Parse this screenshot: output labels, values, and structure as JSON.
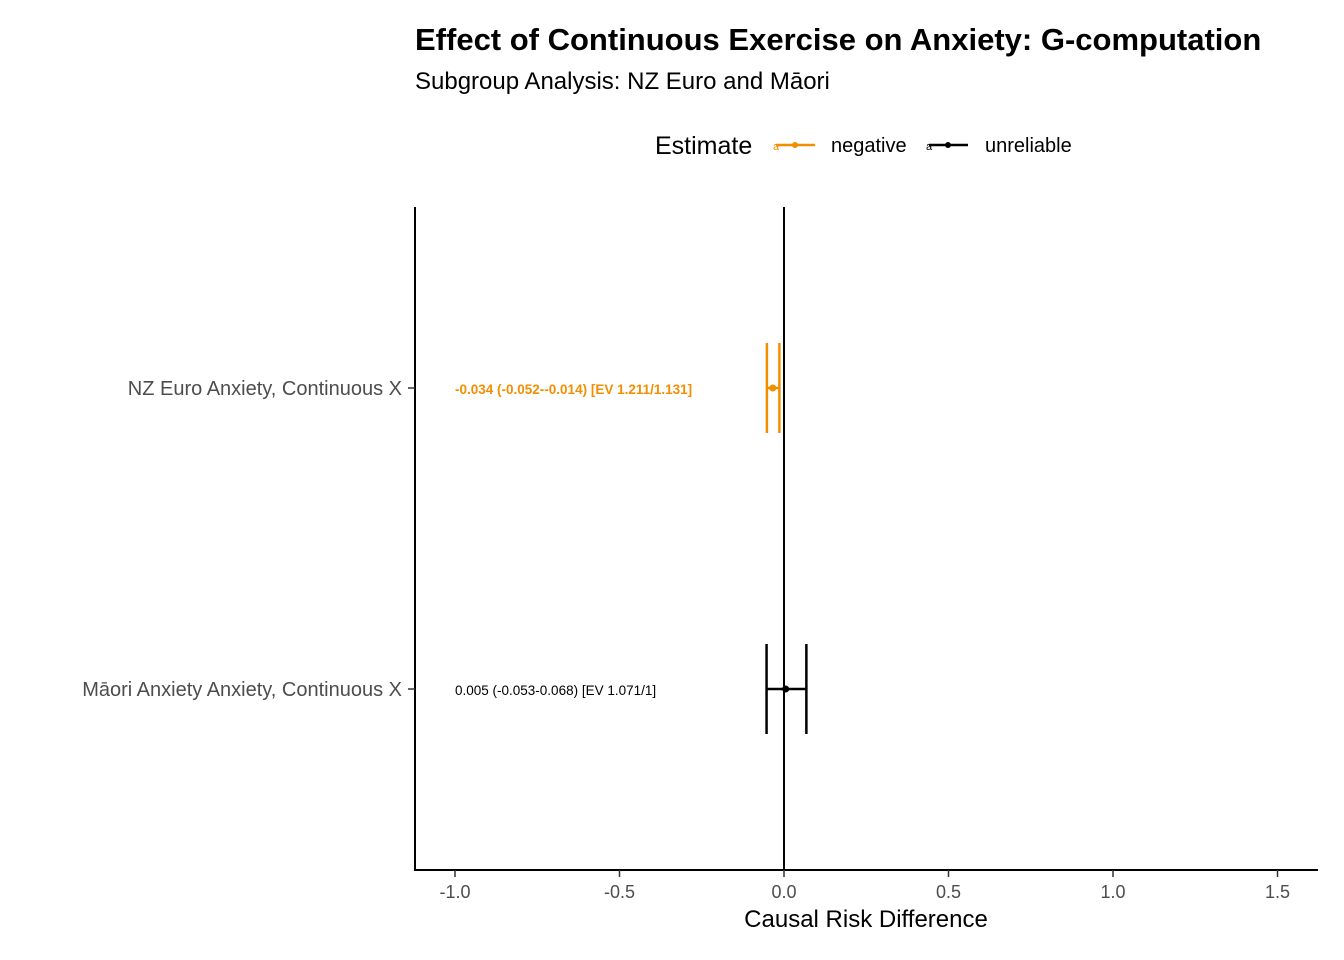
{
  "chart_data": {
    "type": "forest",
    "title": "Effect of Continuous Exercise on Anxiety: G-computation",
    "subtitle": "Subgroup Analysis: NZ Euro and Māori",
    "xlabel": "Causal Risk Difference",
    "xlim": [
      -1.12,
      1.62
    ],
    "xticks": [
      -1.0,
      -0.5,
      0.0,
      0.5,
      1.0,
      1.5
    ],
    "xtick_labels": [
      "-1.0",
      "-0.5",
      "0.0",
      "0.5",
      "1.0",
      "1.5"
    ],
    "reference_line": 0,
    "grid": false,
    "legend": {
      "title": "Estimate",
      "position": "top",
      "items": [
        {
          "label": "negative",
          "color": "#F28E00"
        },
        {
          "label": "unreliable",
          "color": "#000000"
        }
      ]
    },
    "rows": [
      {
        "label": "NZ Euro Anxiety, Continuous X",
        "estimate": -0.034,
        "lower": -0.052,
        "upper": -0.014,
        "category": "negative",
        "color": "#F28E00",
        "annotation": "-0.034 (-0.052--0.014) [EV 1.211/1.131]",
        "annotation_bold": true
      },
      {
        "label": "Māori Anxiety Anxiety, Continuous X",
        "estimate": 0.005,
        "lower": -0.053,
        "upper": 0.068,
        "category": "unreliable",
        "color": "#000000",
        "annotation": "0.005 (-0.053-0.068) [EV 1.071/1]",
        "annotation_bold": false
      }
    ]
  }
}
